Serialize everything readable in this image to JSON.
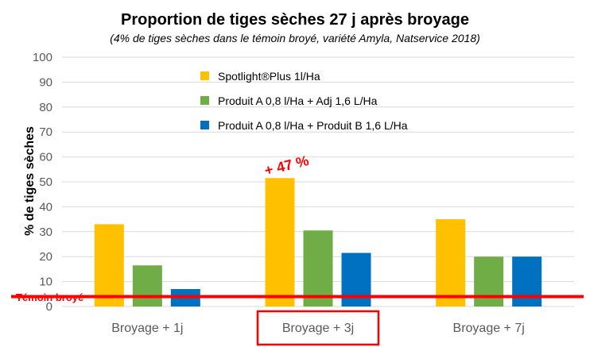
{
  "chart_data": {
    "type": "bar",
    "title": "Proportion de tiges sèches 27 j après broyage",
    "subtitle": "(4% de tiges sèches dans le témoin broyé, variété Amyla, Natservice 2018)",
    "ylabel": "% de tiges sèches",
    "xlabel": "",
    "ylim": [
      0,
      100
    ],
    "yticks": [
      0,
      10,
      20,
      30,
      40,
      50,
      60,
      70,
      80,
      90,
      100
    ],
    "grid": true,
    "legend_position": "top-center",
    "categories": [
      "Broyage + 1j",
      "Broyage + 3j",
      "Broyage + 7j"
    ],
    "highlighted_category": "Broyage + 3j",
    "series": [
      {
        "name": "Spotlight®Plus 1l/Ha",
        "color": "#ffc000",
        "values": [
          33,
          51.5,
          35
        ]
      },
      {
        "name": "Produit A 0,8 l/Ha +  Adj 1,6 L/Ha",
        "color": "#70ad47",
        "values": [
          16.5,
          30.5,
          20
        ]
      },
      {
        "name": "Produit A 0,8 l/Ha +  Produit B 1,6 L/Ha",
        "color": "#0070c0",
        "values": [
          7,
          21.5,
          20
        ]
      }
    ],
    "reference_line": {
      "label": "Témoin broyé",
      "value": 4,
      "color": "#ff0000"
    },
    "annotations": [
      {
        "text": "+ 47 %",
        "category": "Broyage + 3j",
        "color": "#ff0000"
      }
    ]
  }
}
